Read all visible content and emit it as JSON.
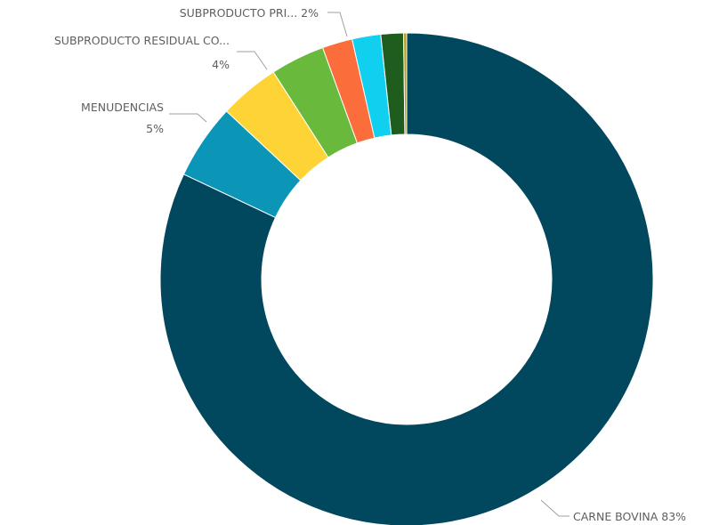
{
  "chart_data": {
    "type": "pie",
    "donut": true,
    "legend": "none",
    "slices": [
      {
        "label": "CARNE BOVINA",
        "value": 83,
        "color": "#01485e",
        "display": "CARNE BOVINA 83%"
      },
      {
        "label": "MENUDENCIAS",
        "value": 5,
        "color": "#0b96b8",
        "display_name": "MENUDENCIAS",
        "display_value": "5%"
      },
      {
        "label": "SUBPRODUCTO RESIDUAL CO...",
        "value": 4,
        "color": "#fdd335",
        "display_name": "SUBPRODUCTO RESIDUAL CO...",
        "display_value": "4%"
      },
      {
        "label": "",
        "value": 3.6,
        "color": "#69ba3c",
        "display": ""
      },
      {
        "label": "SUBPRODUCTO PRI...",
        "value": 2,
        "color": "#fb6d3a",
        "display": "SUBPRODUCTO PRI... 2%"
      },
      {
        "label": "",
        "value": 1.9,
        "color": "#11cfee",
        "display": ""
      },
      {
        "label": "",
        "value": 1.5,
        "color": "#1f5d1e",
        "display": ""
      },
      {
        "label": "",
        "value": 0.2,
        "color": "#b79c0c",
        "display": ""
      }
    ]
  }
}
